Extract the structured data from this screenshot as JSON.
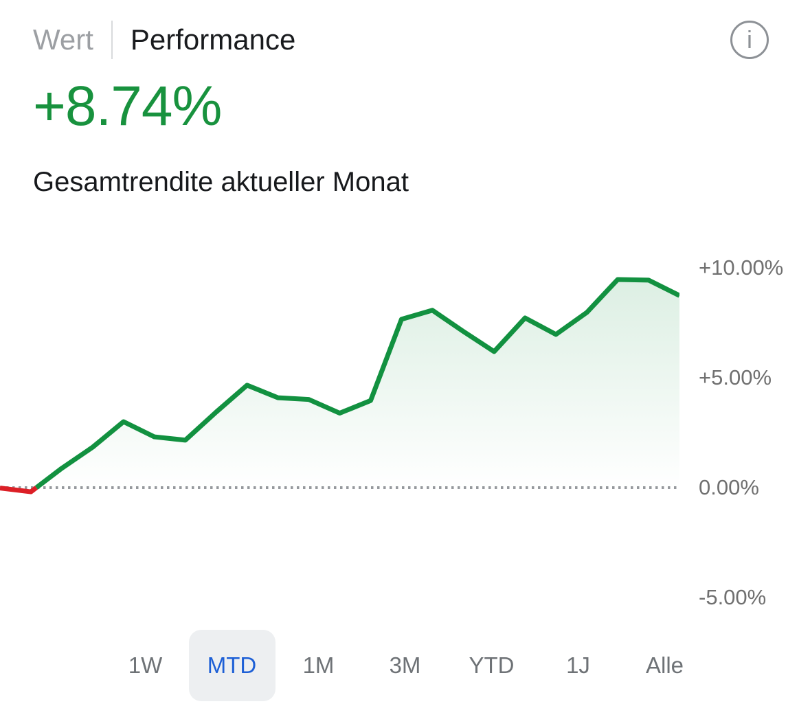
{
  "header": {
    "view_tabs": [
      {
        "label": "Wert",
        "active": false
      },
      {
        "label": "Performance",
        "active": true
      }
    ],
    "info_glyph": "i"
  },
  "summary": {
    "value": "+8.74%",
    "caption": "Gesamtrendite aktueller Monat"
  },
  "chart_data": {
    "type": "line",
    "title": "Gesamtrendite aktueller Monat (MTD)",
    "series": [
      {
        "name": "Gesamtrendite",
        "values": [
          -0.02,
          -0.19,
          0.88,
          1.84,
          3.0,
          2.31,
          2.16,
          3.44,
          4.66,
          4.09,
          4.01,
          3.39,
          3.96,
          7.66,
          8.07,
          7.11,
          6.19,
          7.72,
          6.97,
          7.97,
          9.47,
          9.44,
          8.74
        ]
      }
    ],
    "unit": "%",
    "ylim": [
      -5.3,
      10.9
    ],
    "y_tick_values": [
      10,
      5,
      0,
      -5
    ],
    "y_axis_labels": [
      "+10.00%",
      "+5.00%",
      "0.00%",
      "-5.00%"
    ],
    "baseline": 0,
    "baseline_style": "dotted",
    "grid": "none",
    "legend": "none",
    "colors": {
      "positive": "#129140",
      "negative": "#dc1f26",
      "baseline": "#96999d",
      "fill_top": "rgba(18,145,64,0.15)",
      "fill_bottom": "rgba(18,145,64,0)"
    }
  },
  "range_tabs": {
    "items": [
      {
        "label": "1W",
        "selected": false
      },
      {
        "label": "MTD",
        "selected": true
      },
      {
        "label": "1M",
        "selected": false
      },
      {
        "label": "3M",
        "selected": false
      },
      {
        "label": "YTD",
        "selected": false
      },
      {
        "label": "1J",
        "selected": false
      },
      {
        "label": "Alle",
        "selected": false
      }
    ]
  },
  "colors": {
    "accent_blue": "#1d5fd6",
    "pill_bg": "#edeff1",
    "text_dark": "#17191c",
    "text_gray": "#9c9fa3",
    "axis_gray": "#707070"
  }
}
